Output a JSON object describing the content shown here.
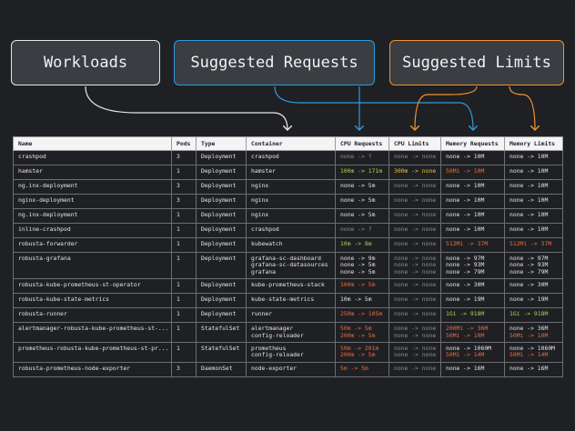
{
  "labels": {
    "workloads": "Workloads",
    "requests": "Suggested Requests",
    "limits": "Suggested Limits"
  },
  "colors": {
    "background": "#1f2024",
    "requests_accent": "#2d9bdb",
    "limits_accent": "#f0922e",
    "increase": "#a5d84a",
    "decrease_or_over": "#f06a3a",
    "unchanged": "#e8c23a",
    "no_data": "#8b8d91"
  },
  "table": {
    "headers": [
      "Name",
      "Pods",
      "Type",
      "Container",
      "CPU Requests",
      "CPU Limits",
      "Memory Requests",
      "Memory Limits"
    ],
    "rows": [
      {
        "name": "crashpod",
        "pods": "3",
        "type": "Deployment",
        "container": "crashpod",
        "cpu_req": [
          {
            "t": "none -> ?",
            "c": "grey"
          }
        ],
        "cpu_lim": [
          {
            "t": "none -> none",
            "c": "grey"
          }
        ],
        "mem_req": [
          {
            "t": "none -> 10M",
            "c": "white"
          }
        ],
        "mem_lim": [
          {
            "t": "none -> 10M",
            "c": "white"
          }
        ]
      },
      {
        "name": "hamster",
        "pods": "1",
        "type": "Deployment",
        "container": "hamster",
        "cpu_req": [
          {
            "t": "100m -> 171m",
            "c": "green"
          }
        ],
        "cpu_lim": [
          {
            "t": "300m -> none",
            "c": "yellow"
          }
        ],
        "mem_req": [
          {
            "t": "50Mi -> 10M",
            "c": "orange"
          }
        ],
        "mem_lim": [
          {
            "t": "none -> 10M",
            "c": "white"
          }
        ]
      },
      {
        "name": "ng.inx-deployment",
        "pods": "3",
        "type": "Deployment",
        "container": "nginx",
        "cpu_req": [
          {
            "t": "none -> 5m",
            "c": "white"
          }
        ],
        "cpu_lim": [
          {
            "t": "none -> none",
            "c": "grey"
          }
        ],
        "mem_req": [
          {
            "t": "none -> 10M",
            "c": "white"
          }
        ],
        "mem_lim": [
          {
            "t": "none -> 10M",
            "c": "white"
          }
        ]
      },
      {
        "name": "nginx-deployment",
        "pods": "3",
        "type": "Deployment",
        "container": "nginx",
        "cpu_req": [
          {
            "t": "none -> 5m",
            "c": "white"
          }
        ],
        "cpu_lim": [
          {
            "t": "none -> none",
            "c": "grey"
          }
        ],
        "mem_req": [
          {
            "t": "none -> 10M",
            "c": "white"
          }
        ],
        "mem_lim": [
          {
            "t": "none -> 10M",
            "c": "white"
          }
        ]
      },
      {
        "name": "ng.inx-deployment",
        "pods": "1",
        "type": "Deployment",
        "container": "nginx",
        "cpu_req": [
          {
            "t": "none -> 5m",
            "c": "white"
          }
        ],
        "cpu_lim": [
          {
            "t": "none -> none",
            "c": "grey"
          }
        ],
        "mem_req": [
          {
            "t": "none -> 10M",
            "c": "white"
          }
        ],
        "mem_lim": [
          {
            "t": "none -> 10M",
            "c": "white"
          }
        ]
      },
      {
        "name": "inline-crashpod",
        "pods": "1",
        "type": "Deployment",
        "container": "crashpod",
        "cpu_req": [
          {
            "t": "none -> ?",
            "c": "grey"
          }
        ],
        "cpu_lim": [
          {
            "t": "none -> none",
            "c": "grey"
          }
        ],
        "mem_req": [
          {
            "t": "none -> 10M",
            "c": "white"
          }
        ],
        "mem_lim": [
          {
            "t": "none -> 10M",
            "c": "white"
          }
        ]
      },
      {
        "name": "robusta-forwarder",
        "pods": "1",
        "type": "Deployment",
        "container": "kubewatch",
        "cpu_req": [
          {
            "t": "10m -> 8m",
            "c": "green"
          }
        ],
        "cpu_lim": [
          {
            "t": "none -> none",
            "c": "grey"
          }
        ],
        "mem_req": [
          {
            "t": "512Mi -> 37M",
            "c": "orange"
          }
        ],
        "mem_lim": [
          {
            "t": "512Mi -> 37M",
            "c": "orange"
          }
        ]
      },
      {
        "name": "robusta-grafana",
        "pods": "1",
        "type": "Deployment",
        "container": "grafana-sc-dashboard\ngrafana-sc-datasources\ngrafana",
        "cpu_req": [
          {
            "t": "none -> 9m",
            "c": "white"
          },
          {
            "t": "none -> 5m",
            "c": "white"
          },
          {
            "t": "none -> 5m",
            "c": "white"
          }
        ],
        "cpu_lim": [
          {
            "t": "none -> none",
            "c": "grey"
          },
          {
            "t": "none -> none",
            "c": "grey"
          },
          {
            "t": "none -> none",
            "c": "grey"
          }
        ],
        "mem_req": [
          {
            "t": "none -> 97M",
            "c": "white"
          },
          {
            "t": "none -> 93M",
            "c": "white"
          },
          {
            "t": "none -> 79M",
            "c": "white"
          }
        ],
        "mem_lim": [
          {
            "t": "none -> 97M",
            "c": "white"
          },
          {
            "t": "none -> 93M",
            "c": "white"
          },
          {
            "t": "none -> 79M",
            "c": "white"
          }
        ]
      },
      {
        "name": "robusta-kube-prometheus-st-operator",
        "pods": "1",
        "type": "Deployment",
        "container": "kube-prometheus-stack",
        "cpu_req": [
          {
            "t": "100m -> 5m",
            "c": "orange"
          }
        ],
        "cpu_lim": [
          {
            "t": "none -> none",
            "c": "grey"
          }
        ],
        "mem_req": [
          {
            "t": "none -> 30M",
            "c": "white"
          }
        ],
        "mem_lim": [
          {
            "t": "none -> 30M",
            "c": "white"
          }
        ]
      },
      {
        "name": "robusta-kube-state-metrics",
        "pods": "1",
        "type": "Deployment",
        "container": "kube-state-metrics",
        "cpu_req": [
          {
            "t": "10m -> 5m",
            "c": "white"
          }
        ],
        "cpu_lim": [
          {
            "t": "none -> none",
            "c": "grey"
          }
        ],
        "mem_req": [
          {
            "t": "none -> 19M",
            "c": "white"
          }
        ],
        "mem_lim": [
          {
            "t": "none -> 19M",
            "c": "white"
          }
        ]
      },
      {
        "name": "robusta-runner",
        "pods": "1",
        "type": "Deployment",
        "container": "runner",
        "cpu_req": [
          {
            "t": "250m -> 105m",
            "c": "orange"
          }
        ],
        "cpu_lim": [
          {
            "t": "none -> none",
            "c": "grey"
          }
        ],
        "mem_req": [
          {
            "t": "1Gi -> 918M",
            "c": "green"
          }
        ],
        "mem_lim": [
          {
            "t": "1Gi -> 918M",
            "c": "green"
          }
        ]
      },
      {
        "name": "alertmanager-robusta-kube-prometheus-st-...",
        "pods": "1",
        "type": "StatefulSet",
        "container": "alertmanager\nconfig-reloader",
        "cpu_req": [
          {
            "t": "50m -> 5m",
            "c": "orange"
          },
          {
            "t": "200m -> 5m",
            "c": "orange"
          }
        ],
        "cpu_lim": [
          {
            "t": "none -> none",
            "c": "grey"
          },
          {
            "t": "none -> none",
            "c": "grey"
          }
        ],
        "mem_req": [
          {
            "t": "200Mi -> 36M",
            "c": "orange"
          },
          {
            "t": "50Mi -> 10M",
            "c": "orange"
          }
        ],
        "mem_lim": [
          {
            "t": "none -> 36M",
            "c": "white"
          },
          {
            "t": "50Mi -> 10M",
            "c": "orange"
          }
        ]
      },
      {
        "name": "prometheus-robusta-kube-prometheus-st-pr...",
        "pods": "1",
        "type": "StatefulSet",
        "container": "prometheus\nconfig-reloader",
        "cpu_req": [
          {
            "t": "50m -> 201m",
            "c": "orange"
          },
          {
            "t": "200m -> 5m",
            "c": "orange"
          }
        ],
        "cpu_lim": [
          {
            "t": "none -> none",
            "c": "grey"
          },
          {
            "t": "none -> none",
            "c": "grey"
          }
        ],
        "mem_req": [
          {
            "t": "none -> 1060M",
            "c": "white"
          },
          {
            "t": "50Mi -> 14M",
            "c": "orange"
          }
        ],
        "mem_lim": [
          {
            "t": "none -> 1060M",
            "c": "white"
          },
          {
            "t": "50Mi -> 14M",
            "c": "orange"
          }
        ]
      },
      {
        "name": "robusta-prometheus-node-exporter",
        "pods": "3",
        "type": "DaemonSet",
        "container": "node-exporter",
        "cpu_req": [
          {
            "t": "5m -> 5m",
            "c": "orange"
          }
        ],
        "cpu_lim": [
          {
            "t": "none -> none",
            "c": "grey"
          }
        ],
        "mem_req": [
          {
            "t": "none -> 16M",
            "c": "white"
          }
        ],
        "mem_lim": [
          {
            "t": "none -> 16M",
            "c": "white"
          }
        ]
      }
    ]
  }
}
